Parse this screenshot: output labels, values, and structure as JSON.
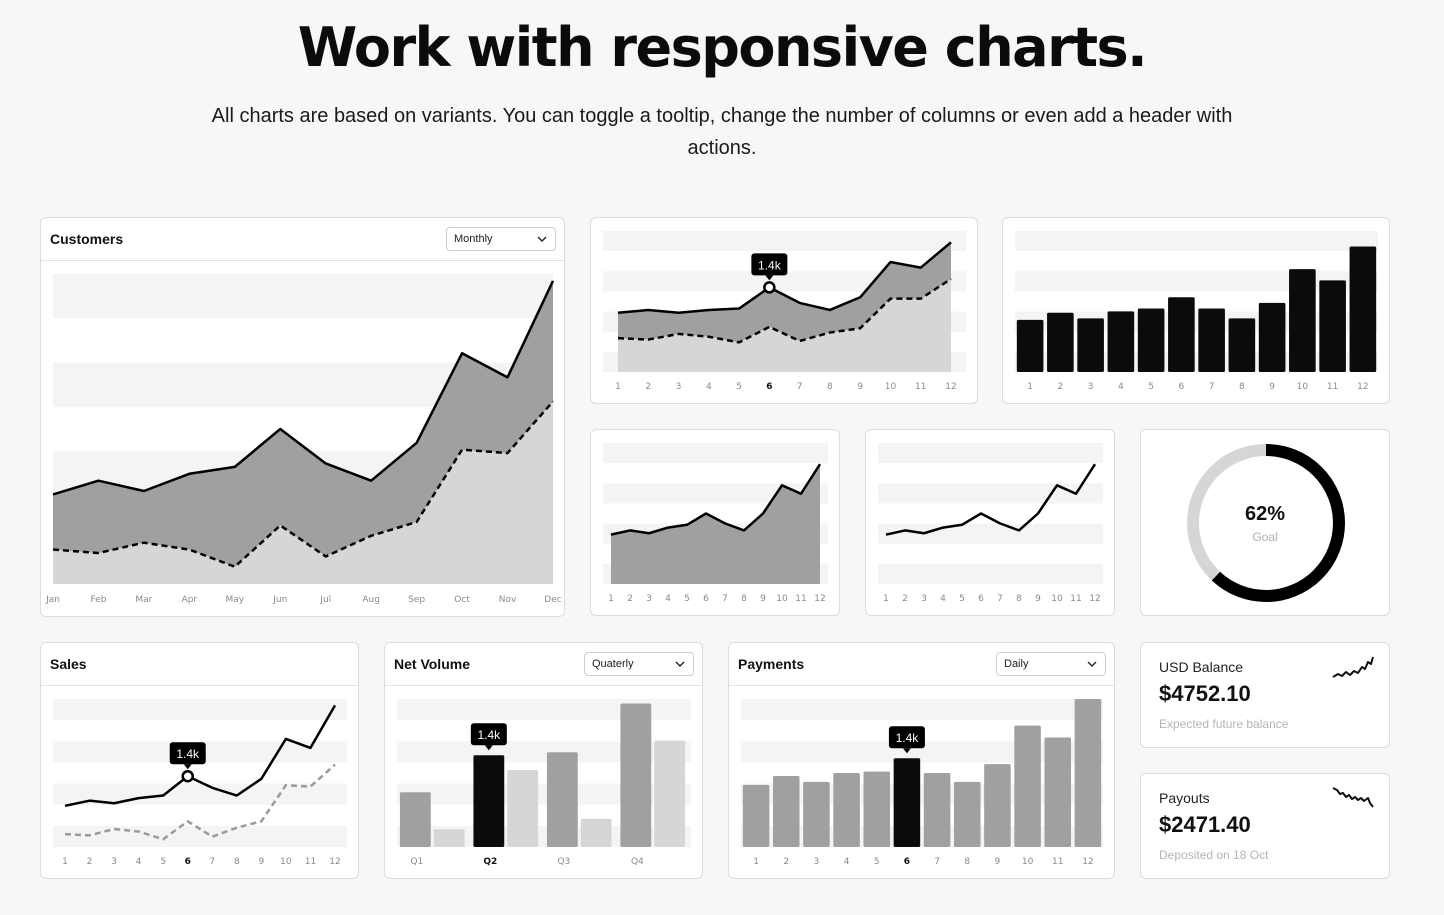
{
  "page": {
    "headline": "Work with responsive charts.",
    "subtitle": "All charts are based on variants. You can toggle a tooltip, change the number of columns or even add a header with actions."
  },
  "colors": {
    "dark": "#0b0b0b",
    "mid": "#a0a0a0",
    "light": "#d6d6d6",
    "band": "#f4f4f4"
  },
  "icons": {
    "dropdown": "chevron-down-icon",
    "sparkline_up": "sparkline-up-icon",
    "sparkline_down": "sparkline-down-icon"
  },
  "customers": {
    "title": "Customers",
    "dropdown": "Monthly"
  },
  "sales": {
    "title": "Sales"
  },
  "net_volume": {
    "title": "Net Volume",
    "dropdown": "Quaterly"
  },
  "payments": {
    "title": "Payments",
    "dropdown": "Daily"
  },
  "goal": {
    "value": "62%",
    "label": "Goal",
    "fraction": 0.62
  },
  "usd_balance": {
    "title": "USD Balance",
    "value": "$4752.10",
    "note": "Expected future balance"
  },
  "payouts": {
    "title": "Payouts",
    "value": "$2471.40",
    "note": "Deposited on 18 Oct"
  },
  "chart_data": [
    {
      "id": "customers",
      "type": "area",
      "categories": [
        "Jan",
        "Feb",
        "Mar",
        "Apr",
        "May",
        "Jun",
        "Jul",
        "Aug",
        "Sep",
        "Oct",
        "Nov",
        "Dec"
      ],
      "series": [
        {
          "values": [
            26,
            30,
            27,
            32,
            34,
            45,
            35,
            30,
            41,
            67,
            60,
            88
          ],
          "style": "solid"
        },
        {
          "values": [
            10,
            9,
            12,
            10,
            5,
            17,
            8,
            14,
            18,
            39,
            38,
            53
          ],
          "style": "dashed"
        }
      ],
      "ylim": [
        0,
        90
      ]
    },
    {
      "id": "area-tooltip",
      "type": "area",
      "categories": [
        "1",
        "2",
        "3",
        "4",
        "5",
        "6",
        "7",
        "8",
        "9",
        "10",
        "11",
        "12"
      ],
      "highlight_index": 5,
      "tooltip": "1.4k",
      "series": [
        {
          "values": [
            42,
            44,
            42,
            44,
            45,
            60,
            49,
            44,
            53,
            78,
            74,
            92
          ],
          "style": "solid"
        },
        {
          "values": [
            24,
            23,
            27,
            25,
            21,
            32,
            22,
            28,
            31,
            52,
            52,
            66
          ],
          "style": "dashed"
        }
      ],
      "ylim": [
        0,
        100
      ]
    },
    {
      "id": "bars-dark",
      "type": "bar",
      "categories": [
        "1",
        "2",
        "3",
        "4",
        "5",
        "6",
        "7",
        "8",
        "9",
        "10",
        "11",
        "12"
      ],
      "values": [
        37,
        42,
        38,
        43,
        45,
        53,
        45,
        38,
        49,
        73,
        65,
        89
      ],
      "ylim": [
        0,
        100
      ]
    },
    {
      "id": "area-small",
      "type": "area",
      "categories": [
        "1",
        "2",
        "3",
        "4",
        "5",
        "6",
        "7",
        "8",
        "9",
        "10",
        "11",
        "12"
      ],
      "series": [
        {
          "values": [
            35,
            38,
            36,
            40,
            42,
            50,
            43,
            38,
            50,
            70,
            64,
            85
          ],
          "style": "solid"
        }
      ],
      "ylim": [
        0,
        100
      ]
    },
    {
      "id": "line-small",
      "type": "line",
      "categories": [
        "1",
        "2",
        "3",
        "4",
        "5",
        "6",
        "7",
        "8",
        "9",
        "10",
        "11",
        "12"
      ],
      "series": [
        {
          "values": [
            35,
            38,
            36,
            40,
            42,
            50,
            43,
            38,
            50,
            70,
            64,
            85
          ],
          "style": "solid"
        }
      ],
      "ylim": [
        0,
        100
      ]
    },
    {
      "id": "sales",
      "type": "line",
      "categories": [
        "1",
        "2",
        "3",
        "4",
        "5",
        "6",
        "7",
        "8",
        "9",
        "10",
        "11",
        "12"
      ],
      "highlight_index": 5,
      "tooltip": "1.4k",
      "series": [
        {
          "values": [
            32,
            36,
            34,
            38,
            40,
            55,
            46,
            40,
            53,
            84,
            77,
            110
          ],
          "style": "solid"
        },
        {
          "values": [
            10,
            9,
            14,
            12,
            6,
            20,
            8,
            15,
            20,
            48,
            47,
            64
          ],
          "style": "dashed"
        }
      ],
      "ylim": [
        0,
        115
      ]
    },
    {
      "id": "net_volume",
      "type": "bar",
      "categories": [
        "Q1",
        "Q2",
        "Q3",
        "Q4"
      ],
      "highlight_index": 1,
      "tooltip": "1.4k",
      "series": [
        {
          "values": [
            37,
            62,
            64,
            97
          ]
        },
        {
          "values": [
            12,
            52,
            19,
            72
          ]
        }
      ],
      "ylim": [
        0,
        100
      ]
    },
    {
      "id": "payments",
      "type": "bar",
      "categories": [
        "1",
        "2",
        "3",
        "4",
        "5",
        "6",
        "7",
        "8",
        "9",
        "10",
        "11",
        "12"
      ],
      "highlight_index": 5,
      "tooltip": "1.4k",
      "values": [
        42,
        48,
        44,
        50,
        51,
        60,
        50,
        44,
        56,
        82,
        74,
        100
      ],
      "ylim": [
        0,
        100
      ]
    }
  ]
}
